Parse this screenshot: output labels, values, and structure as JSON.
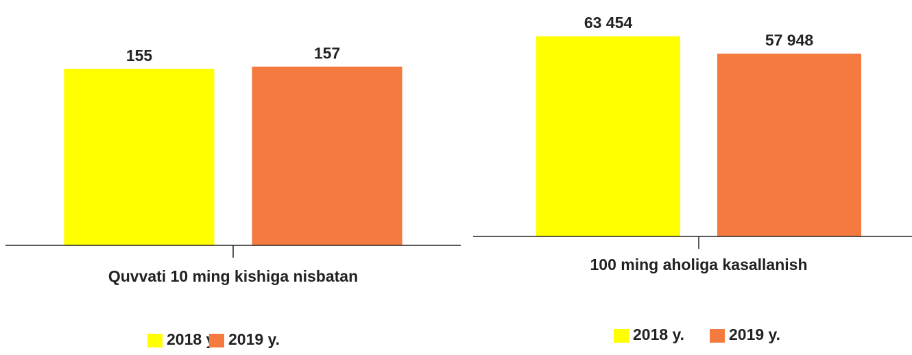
{
  "chart_data": [
    {
      "type": "bar",
      "categories": [
        "Quvvati 10 ming kishiga nisbatan"
      ],
      "series": [
        {
          "name": "2018 y.",
          "color": "#ffff00",
          "values": [
            155
          ]
        },
        {
          "name": "2019 y.",
          "color": "#f47a40",
          "values": [
            157
          ]
        }
      ],
      "ylim": [
        0,
        200
      ]
    },
    {
      "type": "bar",
      "categories": [
        "100 ming aholiga kasallanish"
      ],
      "series": [
        {
          "name": "2018 y.",
          "color": "#ffff00",
          "values": [
            63454
          ],
          "value_labels": [
            "63 454"
          ]
        },
        {
          "name": "2019 y.",
          "color": "#f47a40",
          "values": [
            57948
          ],
          "value_labels": [
            "57 948"
          ]
        }
      ],
      "ylim": [
        0,
        70000
      ]
    }
  ]
}
